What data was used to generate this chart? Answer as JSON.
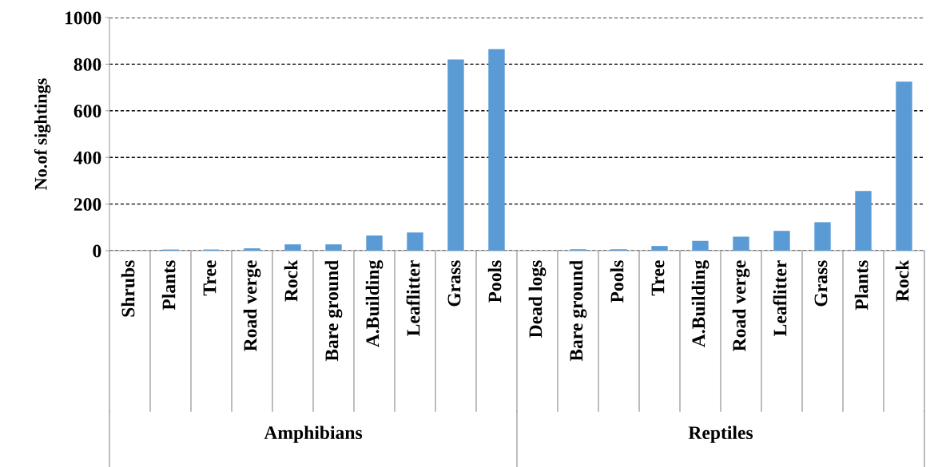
{
  "chart_data": {
    "type": "bar",
    "ylabel": "No.of sightings",
    "categories": [
      "Shrubs",
      "Plants",
      "Tree",
      "Road verge",
      "Rock",
      "Bare ground",
      "A.Building",
      "Leaflitter",
      "Grass",
      "Pools",
      "Dead logs",
      "Bare ground",
      "Pools",
      "Tree",
      "A.Building",
      "Road verge",
      "Leaflitter",
      "Grass",
      "Plants",
      "Rock"
    ],
    "values": [
      0,
      5,
      5,
      10,
      27,
      27,
      65,
      78,
      820,
      865,
      0,
      6,
      6,
      20,
      42,
      60,
      85,
      122,
      256,
      725
    ],
    "color": "#5b9bd5",
    "ylim": [
      0,
      1000
    ],
    "yticks": [
      0,
      200,
      400,
      600,
      800,
      1000
    ],
    "grid": "y",
    "annotations": [
      "Amphibians",
      "Reptiles"
    ]
  }
}
